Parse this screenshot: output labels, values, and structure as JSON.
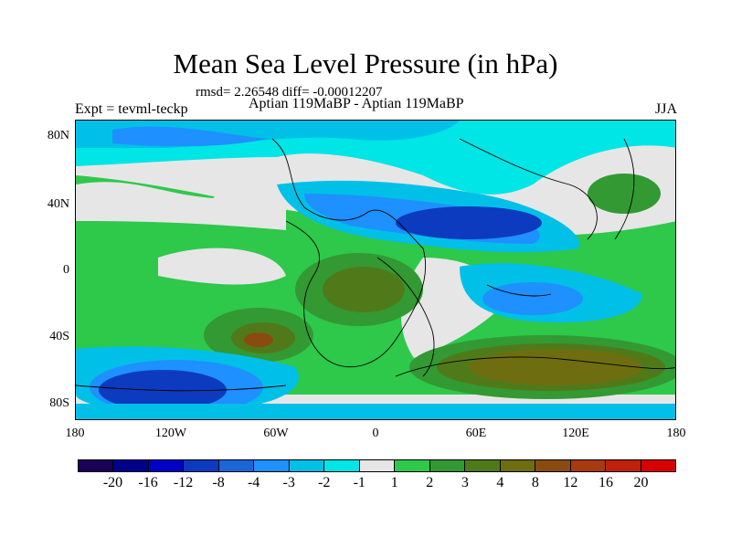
{
  "title": "Mean Sea Level Pressure (in hPa)",
  "stats": "rmsd= 2.26548  diff= -0.00012207",
  "left_label": "Expt = tevml-teckp",
  "center_label": "Aptian   119MaBP - Aptian   119MaBP",
  "right_label": "JJA",
  "y_ticks": [
    "80N",
    "40N",
    "0",
    "40S",
    "80S"
  ],
  "x_ticks": [
    "180",
    "120W",
    "60W",
    "0",
    "60E",
    "120E",
    "180"
  ],
  "colorbar": {
    "colors": [
      "#1a0058",
      "#00008b",
      "#0000c8",
      "#0c3bbf",
      "#1a66d9",
      "#1e90ff",
      "#00c0e8",
      "#00e5e5",
      "#e6e6e6",
      "#2ec84b",
      "#339933",
      "#507a1a",
      "#6e6e10",
      "#8a4b10",
      "#a83a10",
      "#c0200c",
      "#d80000"
    ],
    "labels": [
      "-20",
      "-16",
      "-12",
      "-8",
      "-4",
      "-3",
      "-2",
      "-1",
      "1",
      "2",
      "3",
      "4",
      "8",
      "12",
      "16",
      "20"
    ]
  }
}
